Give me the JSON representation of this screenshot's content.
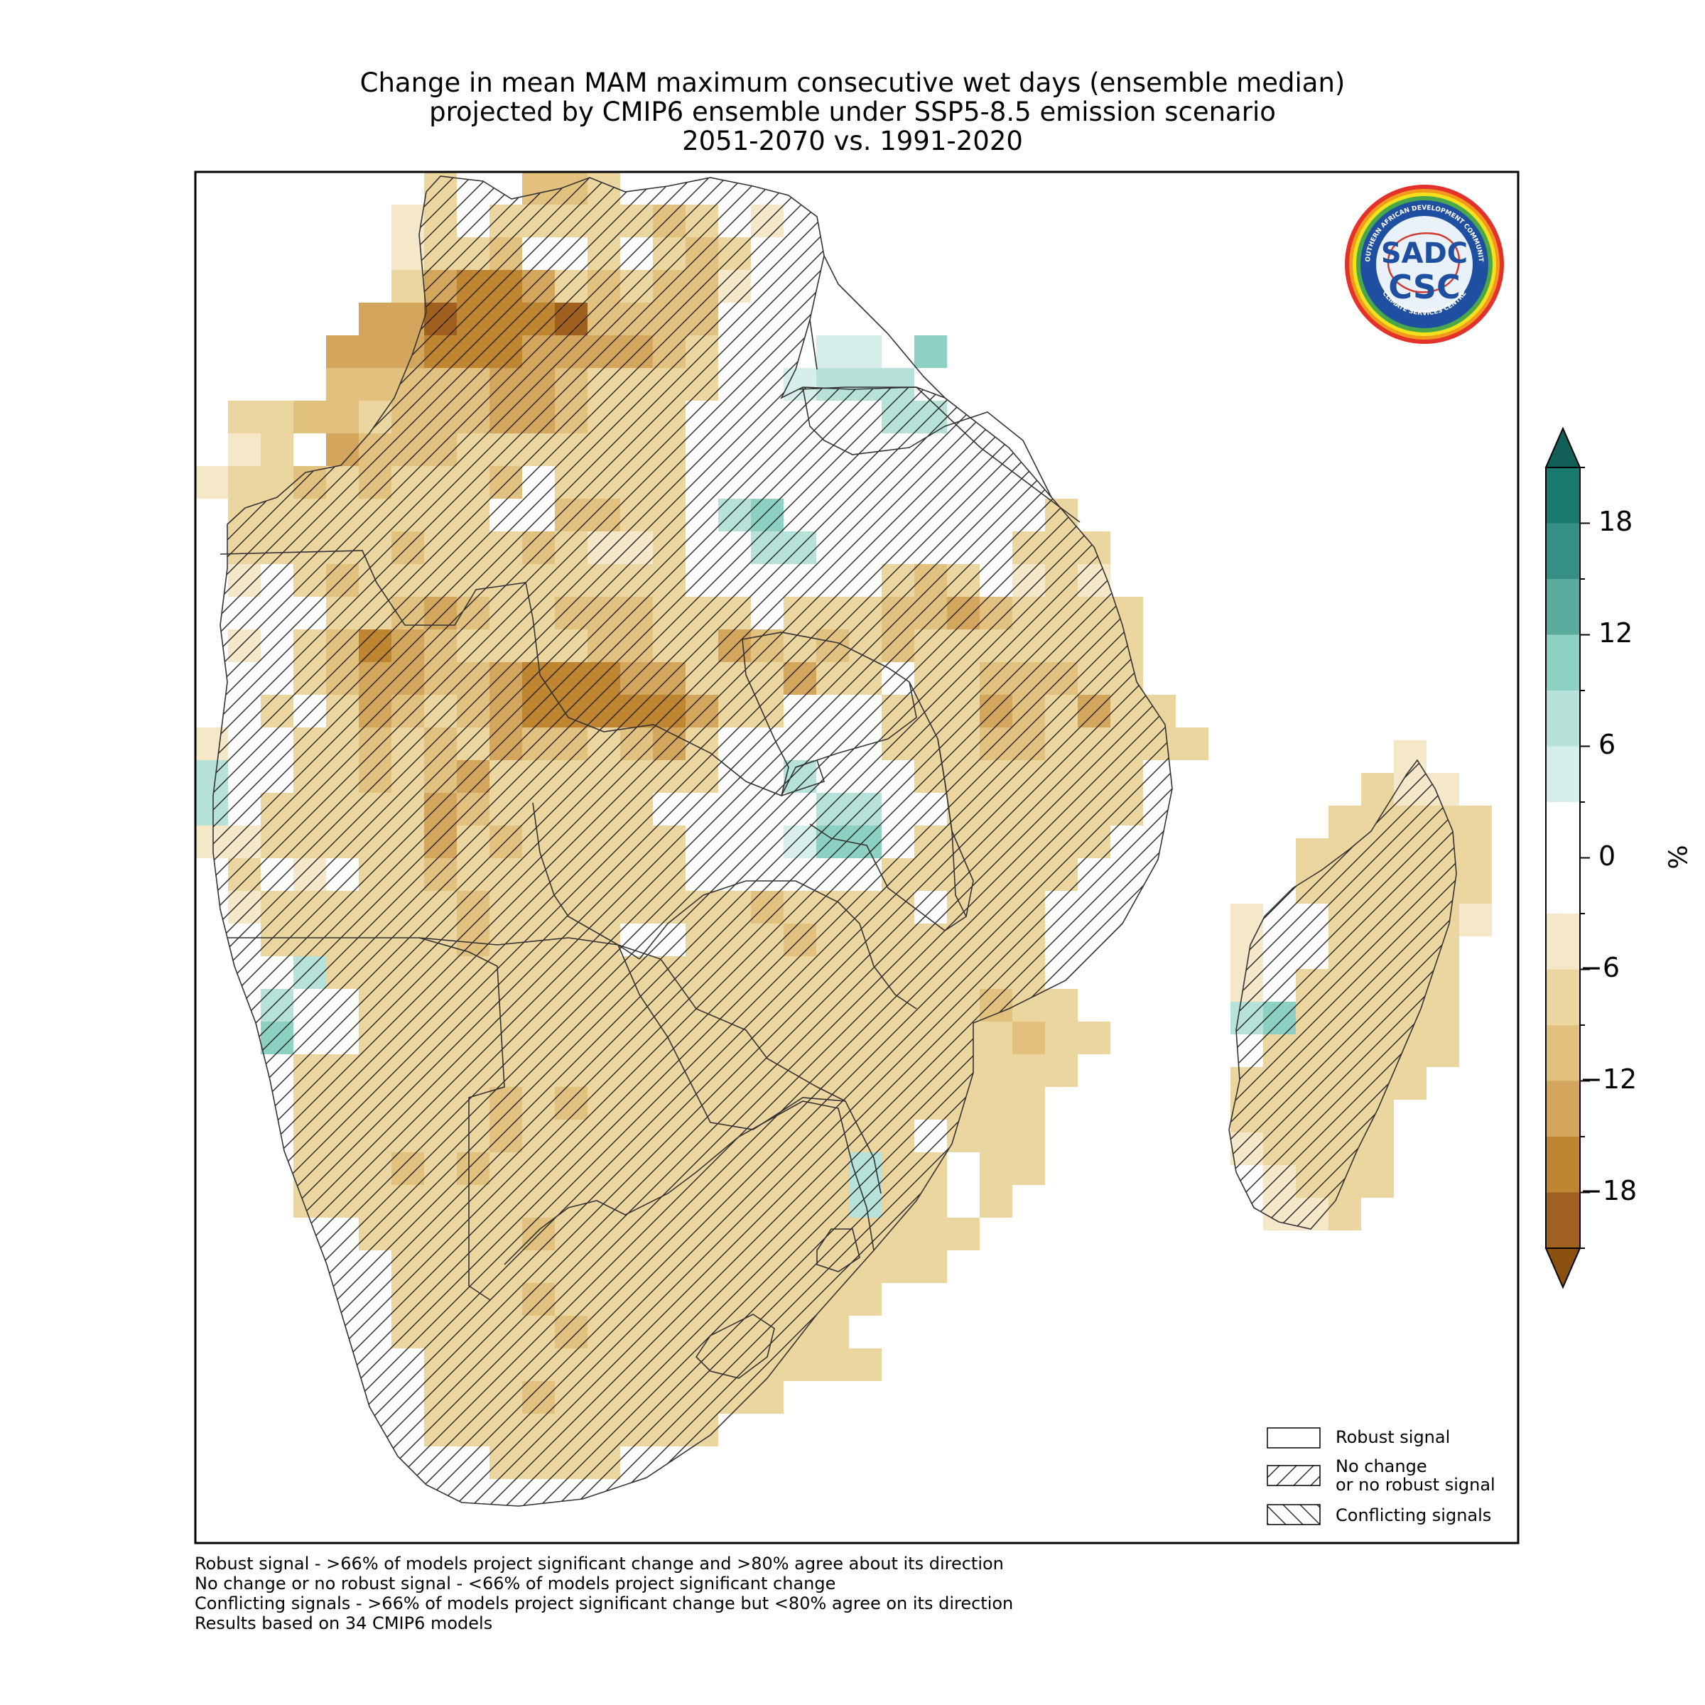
{
  "title": {
    "line1": "Change in mean MAM maximum consecutive wet days (ensemble median)",
    "line2": "projected by CMIP6 ensemble under SSP5-8.5 emission scenario",
    "line3": "2051-2070 vs. 1991-2020"
  },
  "logo": {
    "ring_text_top": "SOUTHERN AFRICAN DEVELOPMENT COMMUNITY",
    "ring_text_bottom": "CLIMATE SERVICES CENTRE",
    "mark_top": "SADC",
    "mark_bottom": "CSC"
  },
  "colorbar": {
    "unit": "%",
    "ticks": [
      "18",
      "12",
      "6",
      "0",
      "−6",
      "−12",
      "−18"
    ],
    "colors_top_to_bottom": [
      "#1b7a70",
      "#368f85",
      "#5aaa9e",
      "#8dd1c3",
      "#b6e2da",
      "#d7efeb",
      "#ffffff",
      "#ffffff",
      "#f5e8c8",
      "#ecd6a0",
      "#e2c07e",
      "#d4a55d",
      "#c08530",
      "#a06020"
    ]
  },
  "legend": {
    "robust": "Robust signal",
    "nochange_line1": "No change",
    "nochange_line2": "or no robust signal",
    "conflicting": "Conflicting signals"
  },
  "footnotes": [
    "Robust signal - >66% of models project significant change and >80% agree about its direction",
    "No change or no robust signal - <66% of models project significant change",
    "Conflicting signals - >66% of models project significant change but <80% agree on its direction",
    "Results based on 34 CMIP6 models"
  ],
  "map_data": {
    "scale_colors": {
      "w": "#ffffff",
      "a": "#f5e8c8",
      "b": "#ecd6a0",
      "c": "#e2c07e",
      "d": "#d4a55d",
      "e": "#c08530",
      "f": "#a06020",
      "g": "#d7efeb",
      "h": "#b6e2da",
      "i": "#8dd1c3"
    },
    "mainland_rows": [
      "       b..ccb.....                   ",
      "      ab.bbbbbcb.a                   ",
      "      abbcwwbwbcb                    ",
      "      bdeedbcbcca                    ",
      "     ddfeeefcccc  w...w              ",
      "    dddeeeddddcb w.gg.i              ",
      "    cccccddcbbbb wghhhw              ",
      " bbccbcccddcbbbw w.w.hh              ",
      " ab dcccbbbbbbb ww.w.ww              ",
      "abbcbcbbbcwbbbbwwwww.w.ww            ",
      " bbbbbbbbwwccbb hiwww.www.b          ",
      " bbbbbcbbbcbaabw hhwwww..bbb         ",
      " awbcbbbbbbbbbbwwwwwwbcb.aba         ",
      "  wwbbcdcbbcccbbbwbbbccdcbbbb        ",
      " awbcedcbbbbccbbdcbcbcbbbbbbb        ",
      "  wbcddccdeeeddbbbdbbwbbcccbb        ",
      "  bwbdcbcdeeeeedbbwwwbbbdcbdbb       ",
      "a wbbcbcbdccbcdbwww.wbbbccbbbbb      ",
      "h wbbcbcdbbbbbbbw.hwwwbbbbbbb        ",
      "hwbbbbbdcbbbbbwwwwwhhwwbbbbbb        ",
      "aabbbbbdbcbbbbbwwwgiiwbbbbbb         ",
      " bwawbbcbbbbbbbwwwwwwbbbbbb          ",
      " abbbbbbcbbbbbbbbcbbbbwbbb           ",
      "  bbbbbbcbbbbwwbbbcbbbbbbb           ",
      "  whbbbbbbbbbbbbbbbbbbbbbb           ",
      "  hwwbbbbbbbbbbbbbbbbbbbcbb          ",
      "  iwwbbbbbbbbbbbbbbbbbbbbcbb         ",
      "   bbbbbbbbbbbbbbbbbbbbbbbb          ",
      "   bbbbbbcbcbbbbbbbbbbbbbb           ",
      "   bbbbbbcbbbbbbbbbbbb.bbb           ",
      "   bbbcbcbbbbbbbbbbbhbb.bb           ",
      "   bbbbbbbbbbbbbbbbbhbb.b            ",
      "     bbbbbcbbbbbbbbbbbbb             ",
      "      bbbbbbbbbbbbbbbbb              ",
      "      bbbbcbbbbbbbbbb                ",
      "      bbbbbcbbbbbbbb                 ",
      "       bbbbbbbbbbbbbb                ",
      "       bbbcbbbbbbb                   ",
      "       bbbbbbbbb                     ",
      "         bbbb                        "
    ],
    "madagascar_rows": [
      "     a  ",
      "    baa ",
      "   bbbbb",
      "  bbbbbb",
      "  bbbbbb",
      "awwbbbba",
      "a wbbbb ",
      "awbbbbb ",
      "hibbbbb ",
      "wbbbbbb ",
      "bbbbbb  ",
      "bbbbb   ",
      "abbbb   ",
      " abbb   ",
      " aab    "
    ]
  }
}
